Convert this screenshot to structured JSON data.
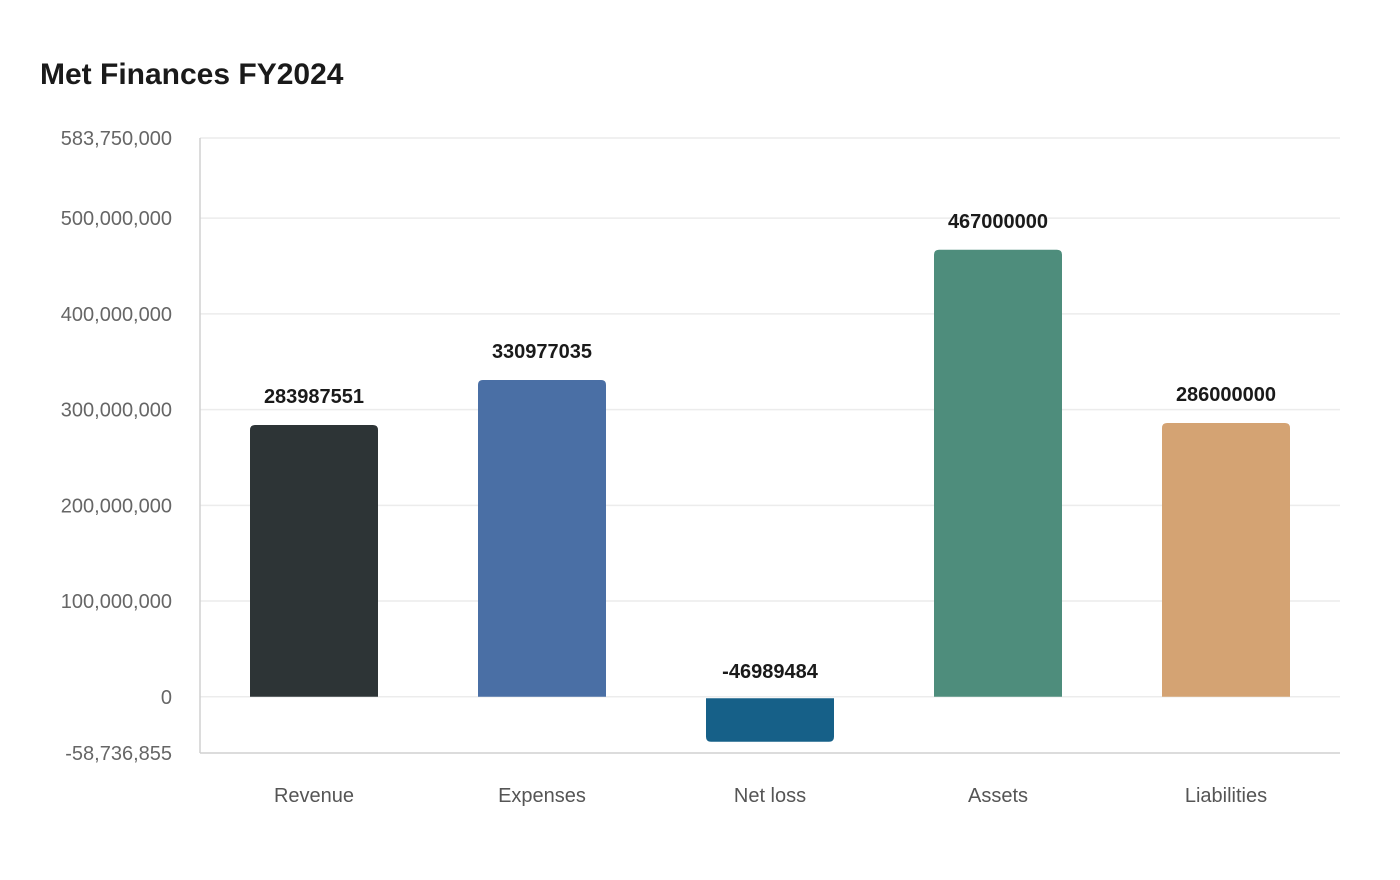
{
  "chart_data": {
    "type": "bar",
    "title": "Met Finances FY2024",
    "xlabel": "",
    "ylabel": "",
    "categories": [
      "Revenue",
      "Expenses",
      "Net loss",
      "Assets",
      "Liabilities"
    ],
    "values": [
      283987551,
      330977035,
      -46989484,
      467000000,
      286000000
    ],
    "value_labels": [
      "283987551",
      "330977035",
      "-46989484",
      "467000000",
      "286000000"
    ],
    "colors": [
      "#2d3436",
      "#4a6fa5",
      "#166088",
      "#4e8d7c",
      "#d4a373"
    ],
    "ylim": [
      -58736855,
      583750000
    ],
    "yticks": [
      -58736855,
      0,
      100000000,
      200000000,
      300000000,
      400000000,
      500000000,
      583750000
    ],
    "ytick_labels": [
      "-58,736,855",
      "0",
      "100,000,000",
      "200,000,000",
      "300,000,000",
      "400,000,000",
      "500,000,000",
      "583,750,000"
    ],
    "grid": true,
    "legend": "none"
  }
}
